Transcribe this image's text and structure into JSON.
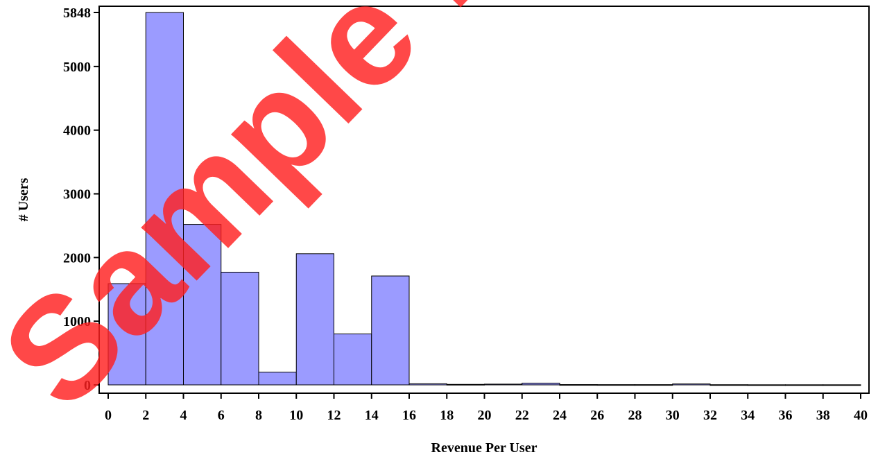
{
  "chart_data": {
    "type": "bar",
    "title": "",
    "xlabel": "Revenue Per User",
    "ylabel": "# Users",
    "bin_edges": [
      0,
      2,
      4,
      6,
      8,
      10,
      12,
      14,
      16,
      18,
      20,
      22,
      24,
      26,
      28,
      30,
      32,
      34,
      36,
      38,
      40
    ],
    "values": [
      1590,
      5848,
      2520,
      1770,
      200,
      2060,
      800,
      1710,
      18,
      8,
      12,
      28,
      5,
      4,
      4,
      15,
      3,
      2,
      2,
      2
    ],
    "x_ticks": [
      "0",
      "2",
      "4",
      "6",
      "8",
      "10",
      "12",
      "14",
      "16",
      "18",
      "20",
      "22",
      "24",
      "26",
      "28",
      "30",
      "32",
      "34",
      "36",
      "38",
      "40"
    ],
    "y_ticks": [
      "0",
      "1000",
      "2000",
      "3000",
      "4000",
      "5000",
      "5848"
    ],
    "xlim": [
      0,
      40
    ],
    "ylim": [
      0,
      5848
    ],
    "bar_color": "#9b9bff",
    "grid": false
  },
  "watermark": {
    "text": "Sample P",
    "color": "#ff2020"
  }
}
